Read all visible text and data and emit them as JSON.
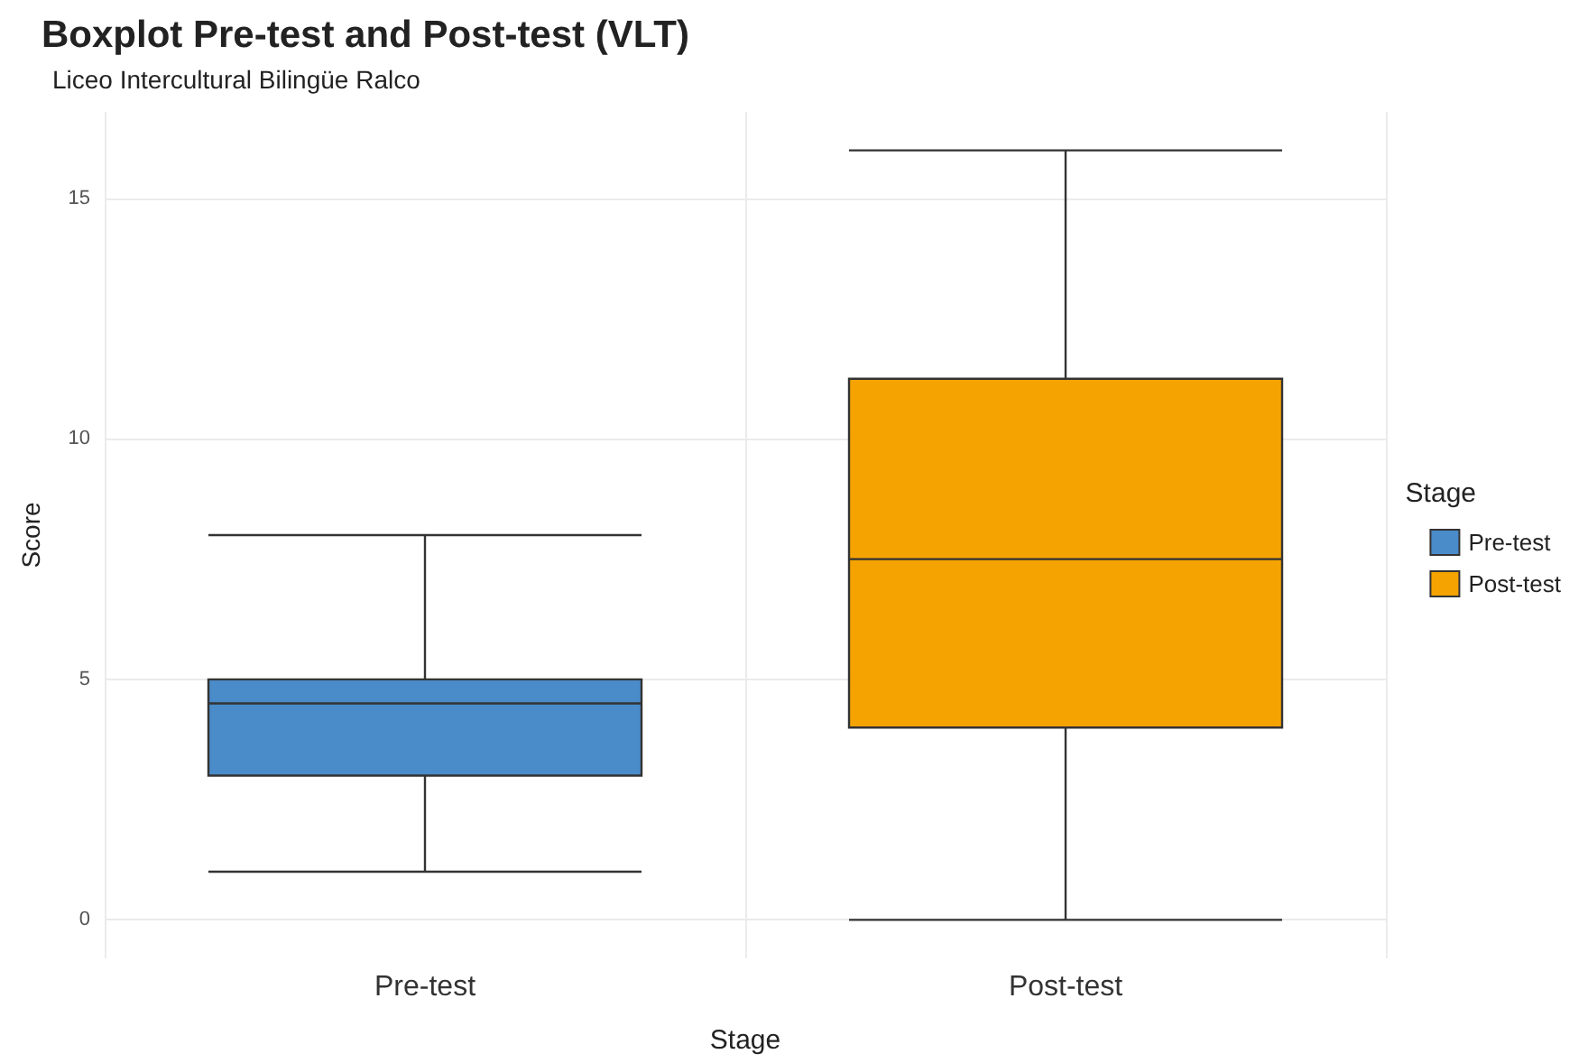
{
  "chart_data": {
    "type": "box",
    "title": "Boxplot Pre-test and Post-test (VLT)",
    "subtitle": "Liceo Intercultural Bilingüe Ralco",
    "xlabel": "Stage",
    "ylabel": "Score",
    "legend_title": "Stage",
    "categories": [
      "Pre-test",
      "Post-test"
    ],
    "series": [
      {
        "name": "Pre-test",
        "color": "#4a8bc9",
        "boxes": [
          {
            "low": 1,
            "q1": 3,
            "median": 4.5,
            "q3": 5,
            "high": 8
          },
          null
        ]
      },
      {
        "name": "Post-test",
        "color": "#f5a300",
        "boxes": [
          null,
          {
            "low": 0,
            "q1": 4,
            "median": 7.5,
            "q3": 11.25,
            "high": 16
          }
        ]
      }
    ],
    "ylim": [
      -0.8,
      16.8
    ],
    "yticks": [
      0,
      5,
      10,
      15
    ],
    "grid": true,
    "legend": "right"
  }
}
